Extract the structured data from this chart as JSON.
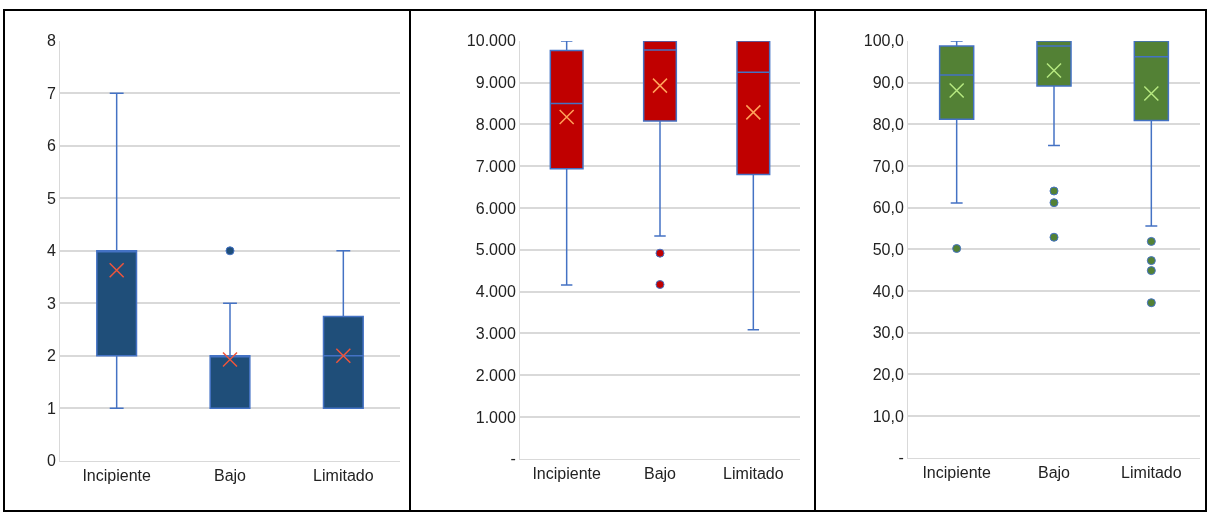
{
  "chart_data": [
    {
      "type": "box",
      "categories": [
        "Incipiente",
        "Bajo",
        "Limitado"
      ],
      "ylim": [
        0,
        8
      ],
      "yticks": [
        0,
        1,
        2,
        3,
        4,
        5,
        6,
        7,
        8
      ],
      "grid": "y",
      "series": [
        {
          "color": "#1f4e79",
          "boxes": [
            {
              "low": 1,
              "q1": 2,
              "median": 4,
              "q3": 4,
              "high": 7,
              "mean": 3.63
            },
            {
              "low": 1,
              "q1": 1,
              "median": 2,
              "q3": 2,
              "high": 3,
              "mean": 1.93,
              "outliers": [
                4
              ]
            },
            {
              "low": 1,
              "q1": 1,
              "median": 2,
              "q3": 2.75,
              "high": 4,
              "mean": 2.0
            }
          ]
        }
      ]
    },
    {
      "type": "box",
      "categories": [
        "Incipiente",
        "Bajo",
        "Limitado"
      ],
      "ylim": [
        0,
        10000
      ],
      "yticks": [
        {
          "value": 0,
          "label": "-"
        },
        {
          "value": 1000,
          "label": "1.000"
        },
        {
          "value": 2000,
          "label": "2.000"
        },
        {
          "value": 3000,
          "label": "3.000"
        },
        {
          "value": 4000,
          "label": "4.000"
        },
        {
          "value": 5000,
          "label": "5.000"
        },
        {
          "value": 6000,
          "label": "6.000"
        },
        {
          "value": 7000,
          "label": "7.000"
        },
        {
          "value": 8000,
          "label": "8.000"
        },
        {
          "value": 9000,
          "label": "9.000"
        },
        {
          "value": 10000,
          "label": "10.000"
        }
      ],
      "grid": "y",
      "series": [
        {
          "color": "#c00000",
          "boxes": [
            {
              "low": 4160,
              "q1": 6940,
              "median": 8500,
              "q3": 9770,
              "high": 10000,
              "mean": 8180
            },
            {
              "low": 5330,
              "q1": 8080,
              "median": 9780,
              "q3": 10000,
              "high": 10000,
              "mean": 8930,
              "outliers": [
                4920,
                4170
              ]
            },
            {
              "low": 3090,
              "q1": 6800,
              "median": 9250,
              "q3": 10000,
              "high": 10000,
              "mean": 8290
            }
          ]
        }
      ]
    },
    {
      "type": "box",
      "categories": [
        "Incipiente",
        "Bajo",
        "Limitado"
      ],
      "ylim": [
        0,
        100
      ],
      "yticks": [
        {
          "value": 0,
          "label": "-"
        },
        {
          "value": 10,
          "label": "10,0"
        },
        {
          "value": 20,
          "label": "20,0"
        },
        {
          "value": 30,
          "label": "30,0"
        },
        {
          "value": 40,
          "label": "40,0"
        },
        {
          "value": 50,
          "label": "50,0"
        },
        {
          "value": 60,
          "label": "60,0"
        },
        {
          "value": 70,
          "label": "70,0"
        },
        {
          "value": 80,
          "label": "80,0"
        },
        {
          "value": 90,
          "label": "90,0"
        },
        {
          "value": 100,
          "label": "100,0"
        }
      ],
      "grid": "y",
      "series": [
        {
          "color": "#538135",
          "boxes": [
            {
              "low": 61.1,
              "q1": 81.2,
              "median": 91.8,
              "q3": 98.8,
              "high": 100,
              "mean": 88.1,
              "outliers": [
                50.2
              ]
            },
            {
              "low": 74.9,
              "q1": 89.2,
              "median": 98.8,
              "q3": 100,
              "high": 100,
              "mean": 92.9,
              "outliers": [
                64.0,
                61.2,
                52.9
              ]
            },
            {
              "low": 55.6,
              "q1": 80.9,
              "median": 96.2,
              "q3": 100,
              "high": 100,
              "mean": 87.4,
              "outliers": [
                51.9,
                47.3,
                44.9,
                37.2
              ]
            }
          ]
        }
      ]
    }
  ]
}
